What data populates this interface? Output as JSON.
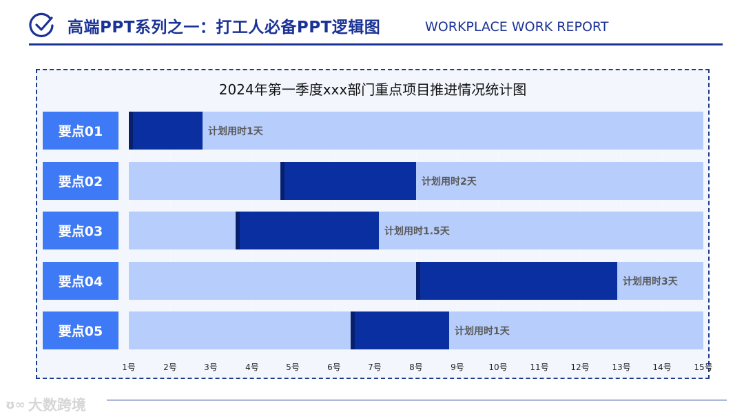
{
  "header": {
    "title": "高端PPT系列之一：打工人必备PPT逻辑图",
    "subtitle": "WORKPLACE WORK REPORT"
  },
  "watermark": "大数跨境",
  "colors": {
    "brand": "#1a3296",
    "label_bg": "#3e7af5",
    "track": "#b7cdfb",
    "bar": "#0a2fa0",
    "panel_bg": "#f3f6fd"
  },
  "chart_data": {
    "type": "bar",
    "subtype": "gantt",
    "title": "2024年第一季度xxx部门重点项目推进情况统计图",
    "x_ticks": [
      "1号",
      "2号",
      "3号",
      "4号",
      "5号",
      "6号",
      "7号",
      "8号",
      "9号",
      "10号",
      "11号",
      "12号",
      "13号",
      "14号",
      "15号"
    ],
    "xlim": [
      1,
      15
    ],
    "categories": [
      "要点01",
      "要点02",
      "要点03",
      "要点04",
      "要点05"
    ],
    "start": [
      1,
      4.7,
      3.6,
      8.0,
      6.4
    ],
    "end": [
      2.8,
      8.0,
      7.1,
      12.9,
      8.8
    ],
    "annotations": [
      "计划用时1天",
      "计划用时2天",
      "计划用时1.5天",
      "计划用时3天",
      "计划用时1天"
    ],
    "grid": true
  }
}
